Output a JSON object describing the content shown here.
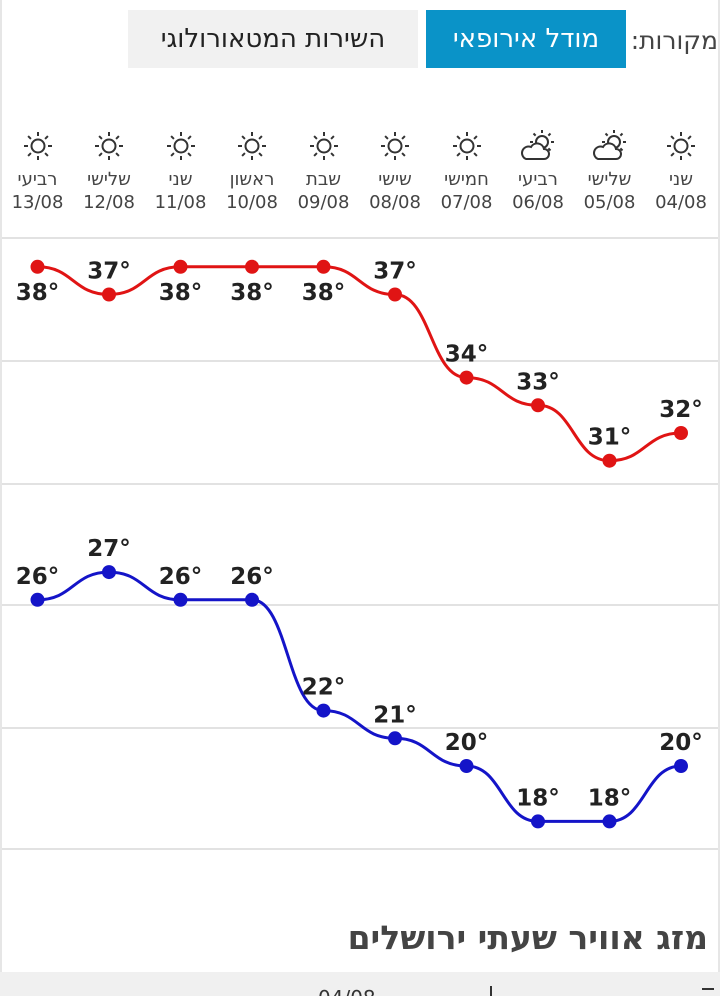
{
  "sources": {
    "label": "מקורות:",
    "european_model": "מודל אירופאי",
    "ims": "השירות המטאורולוגי",
    "active_color": "#0a93c8"
  },
  "days": [
    {
      "name": "שני",
      "date": "04/08",
      "icon": "sun-icon"
    },
    {
      "name": "שלישי",
      "date": "05/08",
      "icon": "partly-cloudy-icon"
    },
    {
      "name": "רביעי",
      "date": "06/08",
      "icon": "partly-cloudy-icon"
    },
    {
      "name": "חמישי",
      "date": "07/08",
      "icon": "sun-icon"
    },
    {
      "name": "שישי",
      "date": "08/08",
      "icon": "sun-icon"
    },
    {
      "name": "שבת",
      "date": "09/08",
      "icon": "sun-icon"
    },
    {
      "name": "ראשון",
      "date": "10/08",
      "icon": "sun-icon"
    },
    {
      "name": "שני",
      "date": "11/08",
      "icon": "sun-icon"
    },
    {
      "name": "שלישי",
      "date": "12/08",
      "icon": "sun-icon"
    },
    {
      "name": "רביעי",
      "date": "13/08",
      "icon": "sun-icon"
    }
  ],
  "chart_data": {
    "type": "line",
    "x": [
      "04/08",
      "05/08",
      "06/08",
      "07/08",
      "08/08",
      "09/08",
      "10/08",
      "11/08",
      "12/08",
      "13/08"
    ],
    "series": [
      {
        "values": [
          32,
          31,
          33,
          34,
          37,
          38,
          38,
          38,
          37,
          38
        ],
        "color": "#e01414"
      },
      {
        "values": [
          20,
          18,
          18,
          20,
          21,
          22,
          26,
          26,
          27,
          26
        ],
        "color": "#1414c8"
      }
    ],
    "unit": "°",
    "grid": true
  },
  "hourly": {
    "title": "מזג אוויר שעתי ירושלים",
    "partial_date": "04/08"
  }
}
